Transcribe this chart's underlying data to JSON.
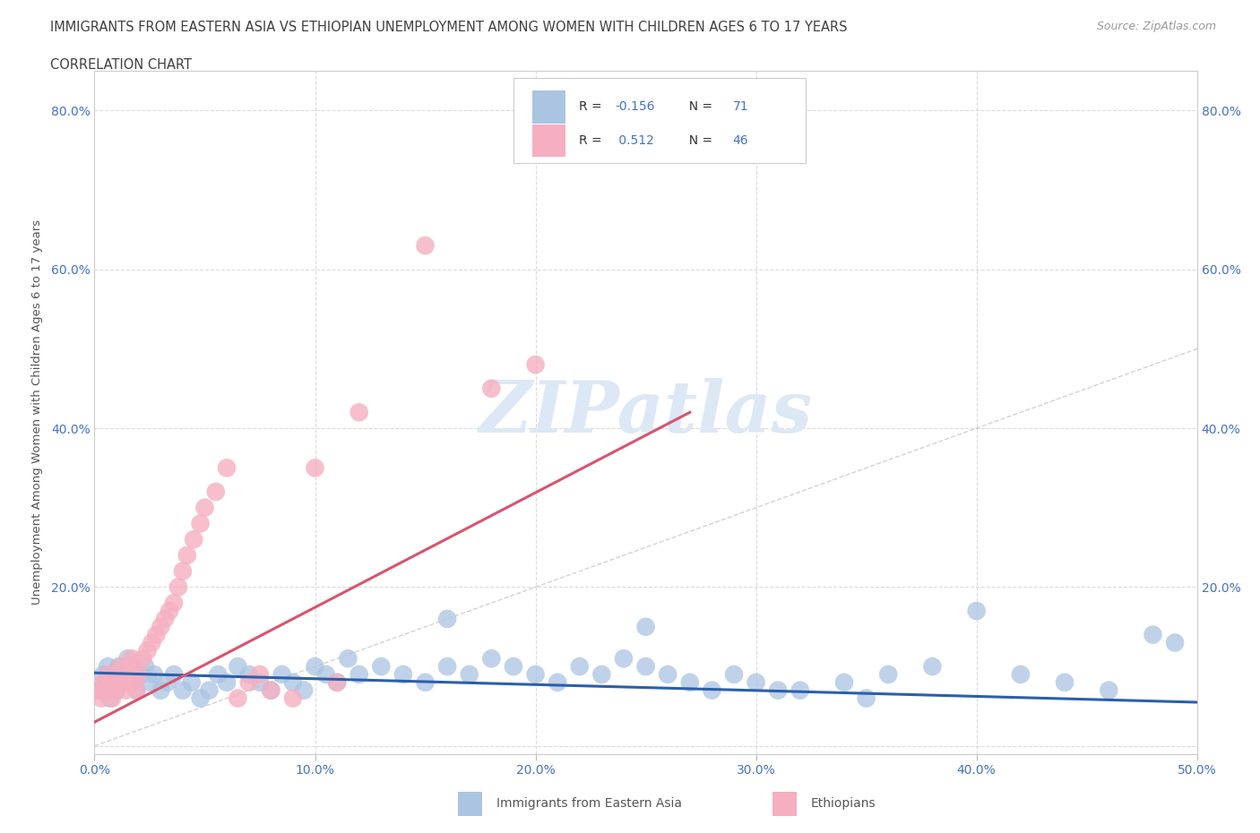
{
  "title_line1": "IMMIGRANTS FROM EASTERN ASIA VS ETHIOPIAN UNEMPLOYMENT AMONG WOMEN WITH CHILDREN AGES 6 TO 17 YEARS",
  "title_line2": "CORRELATION CHART",
  "source_text": "Source: ZipAtlas.com",
  "ylabel": "Unemployment Among Women with Children Ages 6 to 17 years",
  "xlim": [
    0.0,
    0.5
  ],
  "ylim": [
    -0.01,
    0.85
  ],
  "xticks": [
    0.0,
    0.1,
    0.2,
    0.3,
    0.4,
    0.5
  ],
  "xticklabels": [
    "0.0%",
    "10.0%",
    "20.0%",
    "30.0%",
    "40.0%",
    "50.0%"
  ],
  "yticks": [
    0.0,
    0.2,
    0.4,
    0.6,
    0.8
  ],
  "yticklabels": [
    "",
    "20.0%",
    "40.0%",
    "60.0%",
    "80.0%"
  ],
  "blue_color": "#aac4e2",
  "pink_color": "#f5afc0",
  "blue_line_color": "#2b5fac",
  "pink_line_color": "#d9546e",
  "diagonal_color": "#c8c8c8",
  "watermark_color": "#dce8f5",
  "title_color": "#404040",
  "axis_label_color": "#555555",
  "tick_label_color": "#4472c4",
  "source_color": "#999999",
  "grid_color": "#d8d8d8",
  "legend_box_color": "#cccccc",
  "blue_x": [
    0.003,
    0.004,
    0.005,
    0.006,
    0.007,
    0.008,
    0.009,
    0.01,
    0.011,
    0.012,
    0.013,
    0.015,
    0.017,
    0.019,
    0.021,
    0.023,
    0.025,
    0.027,
    0.03,
    0.033,
    0.036,
    0.04,
    0.044,
    0.048,
    0.052,
    0.056,
    0.06,
    0.065,
    0.07,
    0.075,
    0.08,
    0.085,
    0.09,
    0.095,
    0.1,
    0.105,
    0.11,
    0.115,
    0.12,
    0.13,
    0.14,
    0.15,
    0.16,
    0.17,
    0.18,
    0.19,
    0.2,
    0.21,
    0.22,
    0.23,
    0.24,
    0.25,
    0.26,
    0.27,
    0.28,
    0.29,
    0.3,
    0.32,
    0.34,
    0.36,
    0.38,
    0.4,
    0.42,
    0.44,
    0.46,
    0.48,
    0.49,
    0.25,
    0.31,
    0.35,
    0.16
  ],
  "blue_y": [
    0.07,
    0.09,
    0.08,
    0.1,
    0.06,
    0.08,
    0.09,
    0.07,
    0.1,
    0.08,
    0.09,
    0.11,
    0.08,
    0.07,
    0.09,
    0.1,
    0.08,
    0.09,
    0.07,
    0.08,
    0.09,
    0.07,
    0.08,
    0.06,
    0.07,
    0.09,
    0.08,
    0.1,
    0.09,
    0.08,
    0.07,
    0.09,
    0.08,
    0.07,
    0.1,
    0.09,
    0.08,
    0.11,
    0.09,
    0.1,
    0.09,
    0.08,
    0.1,
    0.09,
    0.11,
    0.1,
    0.09,
    0.08,
    0.1,
    0.09,
    0.11,
    0.1,
    0.09,
    0.08,
    0.07,
    0.09,
    0.08,
    0.07,
    0.08,
    0.09,
    0.1,
    0.17,
    0.09,
    0.08,
    0.07,
    0.14,
    0.13,
    0.15,
    0.07,
    0.06,
    0.16
  ],
  "pink_x": [
    0.002,
    0.003,
    0.004,
    0.005,
    0.006,
    0.007,
    0.008,
    0.009,
    0.01,
    0.011,
    0.012,
    0.013,
    0.014,
    0.015,
    0.016,
    0.017,
    0.018,
    0.019,
    0.02,
    0.022,
    0.024,
    0.026,
    0.028,
    0.03,
    0.032,
    0.034,
    0.036,
    0.038,
    0.04,
    0.042,
    0.045,
    0.048,
    0.05,
    0.055,
    0.06,
    0.065,
    0.07,
    0.075,
    0.08,
    0.09,
    0.1,
    0.11,
    0.12,
    0.15,
    0.18,
    0.2
  ],
  "pink_y": [
    0.07,
    0.06,
    0.08,
    0.07,
    0.09,
    0.08,
    0.06,
    0.07,
    0.08,
    0.09,
    0.1,
    0.08,
    0.07,
    0.09,
    0.1,
    0.11,
    0.08,
    0.07,
    0.09,
    0.11,
    0.12,
    0.13,
    0.14,
    0.15,
    0.16,
    0.17,
    0.18,
    0.2,
    0.22,
    0.24,
    0.26,
    0.28,
    0.3,
    0.32,
    0.35,
    0.06,
    0.08,
    0.09,
    0.07,
    0.06,
    0.35,
    0.08,
    0.42,
    0.63,
    0.45,
    0.48
  ],
  "blue_line_x": [
    0.0,
    0.5
  ],
  "blue_line_y": [
    0.092,
    0.055
  ],
  "pink_line_x": [
    0.0,
    0.27
  ],
  "pink_line_y": [
    0.03,
    0.42
  ]
}
